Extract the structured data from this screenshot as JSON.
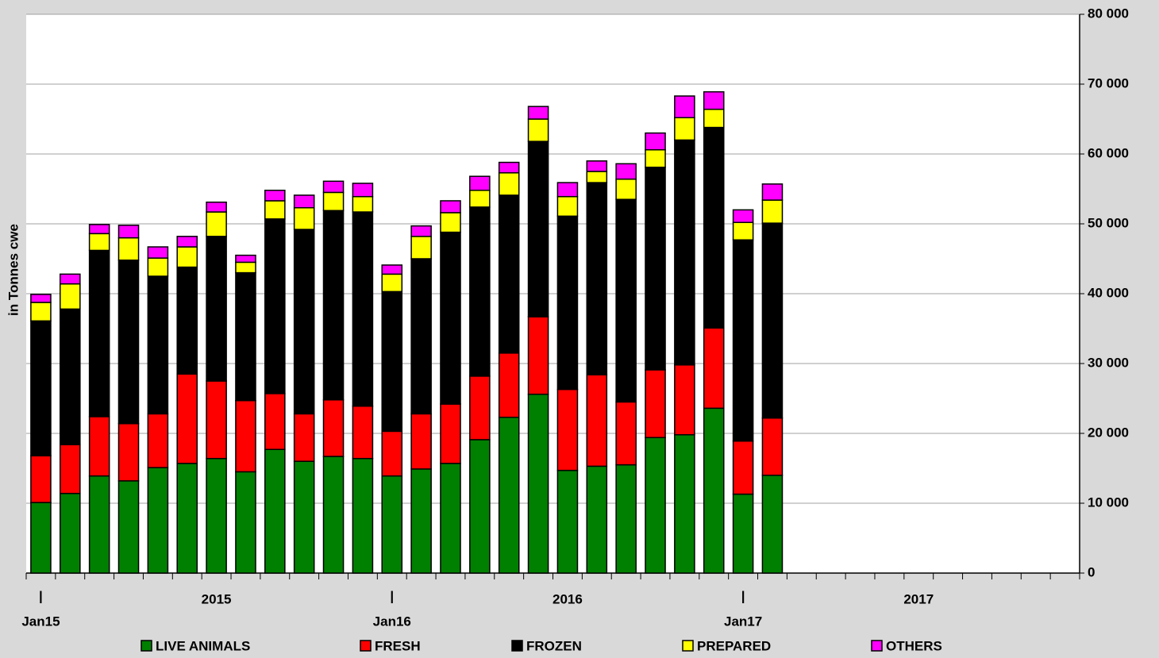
{
  "chart_data": {
    "type": "stacked_bar",
    "y_axis_label": "in Tonnes cwe",
    "categories": [
      "Jan15",
      null,
      null,
      null,
      null,
      null,
      null,
      null,
      null,
      null,
      null,
      null,
      "Jan16",
      null,
      null,
      null,
      null,
      null,
      null,
      null,
      null,
      null,
      null,
      null,
      "Jan17",
      null,
      null,
      null,
      null,
      null,
      null,
      null,
      null,
      null,
      null,
      null
    ],
    "period_marker": "|",
    "year_labels": [
      "2015",
      "2016",
      "2017"
    ],
    "series": [
      {
        "name": "LIVE ANIMALS",
        "color": "#008000",
        "values": [
          10100,
          11400,
          13900,
          13200,
          15100,
          15700,
          16400,
          14500,
          17700,
          16000,
          16700,
          16400,
          13900,
          14900,
          15700,
          19100,
          22300,
          25600,
          14700,
          15300,
          15500,
          19400,
          19800,
          23600,
          11300,
          14000,
          null,
          null,
          null,
          null,
          null,
          null,
          null,
          null,
          null,
          null
        ]
      },
      {
        "name": "FRESH",
        "color": "#ff0000",
        "values": [
          6700,
          7000,
          8500,
          8200,
          7700,
          12800,
          11100,
          10200,
          8000,
          6800,
          8100,
          7500,
          6400,
          7900,
          8500,
          9100,
          9200,
          11100,
          11600,
          13100,
          9000,
          9700,
          10000,
          11500,
          7600,
          8200,
          null,
          null,
          null,
          null,
          null,
          null,
          null,
          null,
          null,
          null
        ]
      },
      {
        "name": "FROZEN",
        "color": "#000000",
        "values": [
          19300,
          19400,
          23800,
          23400,
          19700,
          15300,
          20700,
          18300,
          25000,
          26400,
          27100,
          27800,
          20000,
          22200,
          24600,
          24200,
          22600,
          25100,
          24800,
          27500,
          29000,
          29000,
          32200,
          28700,
          28800,
          27900,
          null,
          null,
          null,
          null,
          null,
          null,
          null,
          null,
          null,
          null
        ]
      },
      {
        "name": "PREPARED",
        "color": "#ffff00",
        "values": [
          2650,
          3600,
          2400,
          3200,
          2600,
          2900,
          3500,
          1500,
          2600,
          3100,
          2600,
          2200,
          2500,
          3200,
          2800,
          2400,
          3200,
          3200,
          2800,
          1600,
          2900,
          2500,
          3200,
          2600,
          2500,
          3300,
          null,
          null,
          null,
          null,
          null,
          null,
          null,
          null,
          null,
          null
        ]
      },
      {
        "name": "OTHERS",
        "color": "#ff00ff",
        "values": [
          1150,
          1400,
          1300,
          1800,
          1600,
          1500,
          1400,
          1000,
          1500,
          1800,
          1600,
          1900,
          1300,
          1500,
          1700,
          2000,
          1500,
          1800,
          2000,
          1500,
          2200,
          2400,
          3100,
          2500,
          1800,
          2300,
          null,
          null,
          null,
          null,
          null,
          null,
          null,
          null,
          null,
          null
        ]
      }
    ],
    "ylim": [
      0,
      80000
    ],
    "yticks": [
      0,
      {
        "value": 10000,
        "label": "10 000"
      },
      {
        "value": 20000,
        "label": "20 000"
      },
      {
        "value": 30000,
        "label": "30 000"
      },
      {
        "value": 40000,
        "label": "40 000"
      },
      {
        "value": 50000,
        "label": "50 000"
      },
      {
        "value": 60000,
        "label": "60 000"
      },
      {
        "value": 70000,
        "label": "70 000"
      },
      {
        "value": 80000,
        "label": "80 000"
      }
    ],
    "grid": true,
    "legend": "bottom"
  }
}
